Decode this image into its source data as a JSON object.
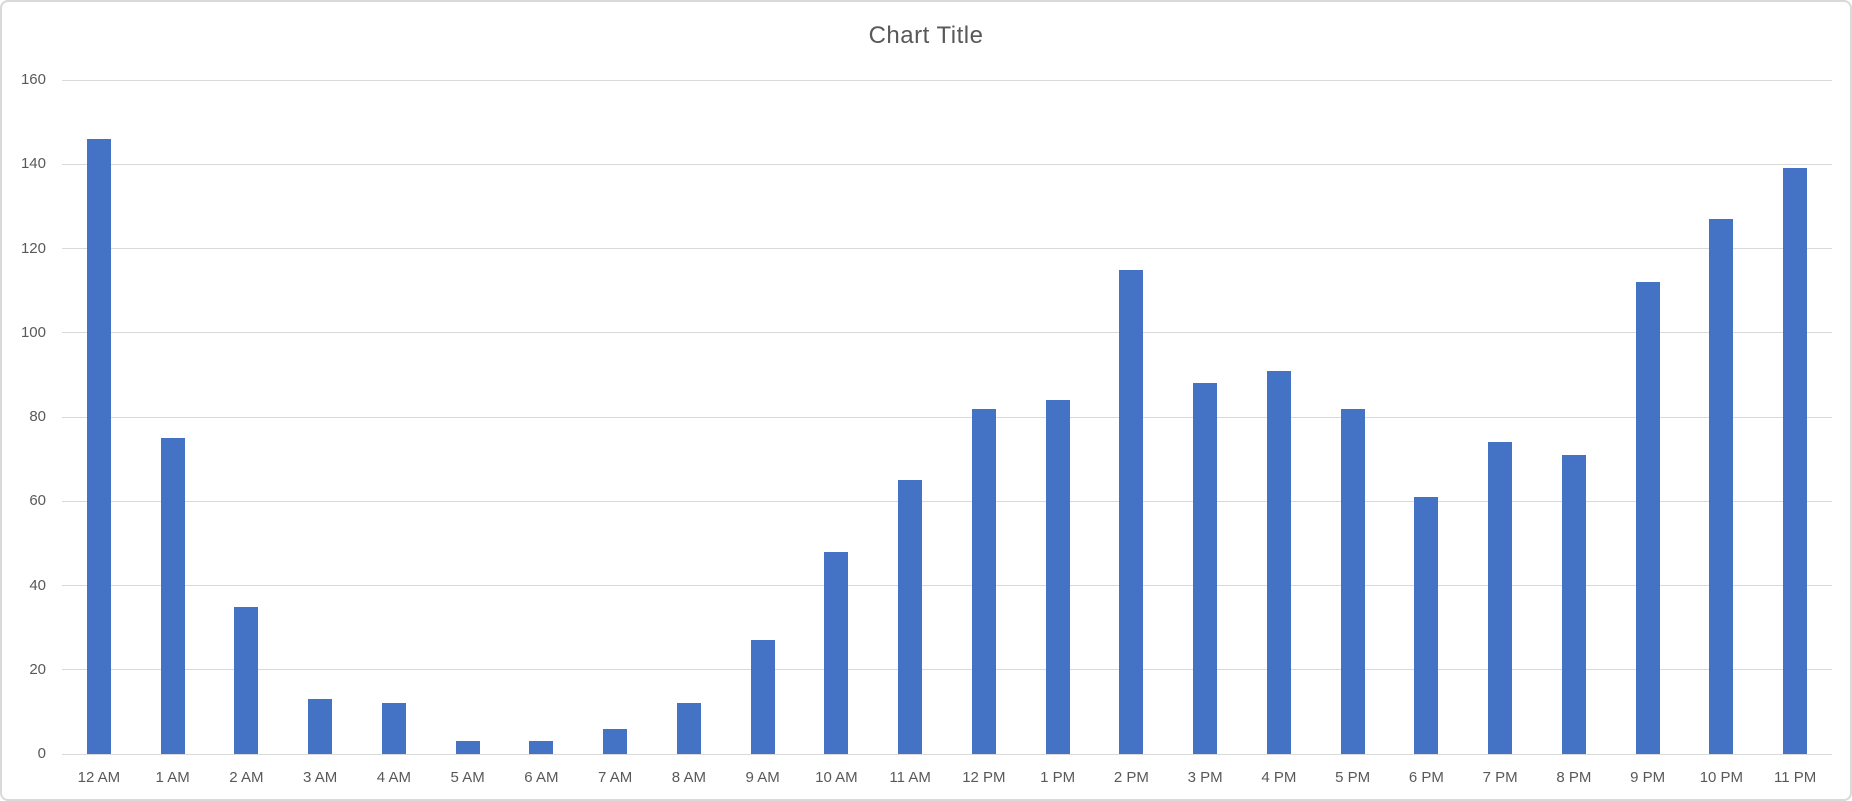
{
  "chart_data": {
    "type": "bar",
    "title": "Chart Title",
    "categories": [
      "12 AM",
      "1 AM",
      "2 AM",
      "3 AM",
      "4 AM",
      "5 AM",
      "6 AM",
      "7 AM",
      "8 AM",
      "9 AM",
      "10 AM",
      "11 AM",
      "12 PM",
      "1 PM",
      "2 PM",
      "3 PM",
      "4 PM",
      "5 PM",
      "6 PM",
      "7 PM",
      "8 PM",
      "9 PM",
      "10 PM",
      "11 PM"
    ],
    "values": [
      146,
      75,
      35,
      13,
      12,
      3,
      3,
      6,
      12,
      27,
      48,
      65,
      82,
      84,
      115,
      88,
      91,
      82,
      61,
      74,
      71,
      112,
      127,
      139
    ],
    "xlabel": "",
    "ylabel": "",
    "ylim": [
      0,
      160
    ],
    "yticks": [
      0,
      20,
      40,
      60,
      80,
      100,
      120,
      140,
      160
    ],
    "grid": true,
    "legend_position": "none",
    "colors": {
      "bar_fill": "#4472c4",
      "gridline": "#d9d9d9",
      "axis_line": "#d9d9d9",
      "tick_label": "#595959",
      "title": "#595959"
    }
  }
}
